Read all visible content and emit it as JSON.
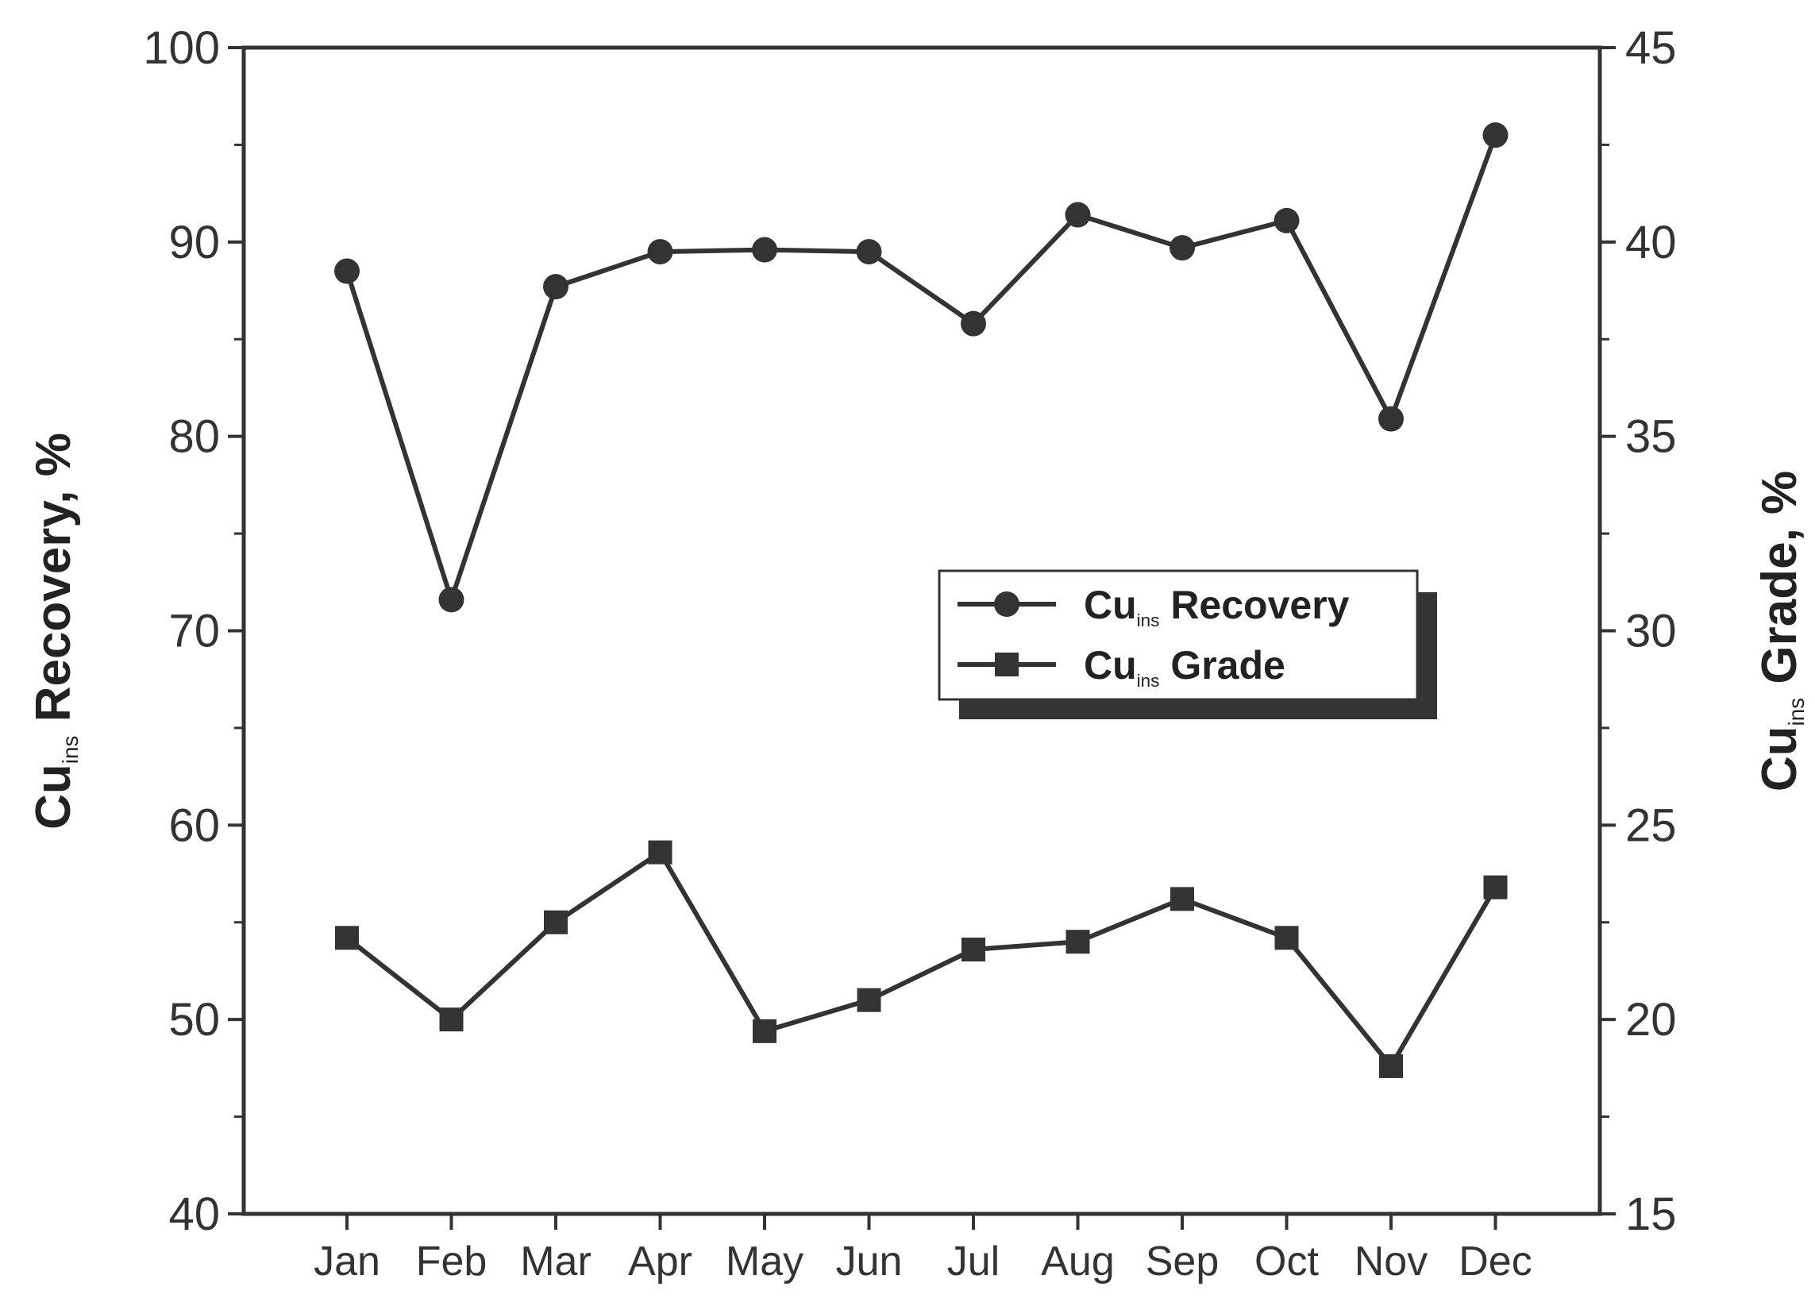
{
  "chart_data": {
    "type": "line",
    "categories": [
      "Jan",
      "Feb",
      "Mar",
      "Apr",
      "May",
      "Jun",
      "Jul",
      "Aug",
      "Sep",
      "Oct",
      "Nov",
      "Dec"
    ],
    "y_left": {
      "label_main": "Cu",
      "label_sub": "ins",
      "label_rest": " Recovery, %",
      "min": 40,
      "max": 100,
      "ticks": [
        40,
        50,
        60,
        70,
        80,
        90,
        100
      ]
    },
    "y_right": {
      "label_main": "Cu",
      "label_sub": "ins",
      "label_rest": " Grade, %",
      "min": 15,
      "max": 45,
      "ticks": [
        15,
        20,
        25,
        30,
        35,
        40,
        45
      ]
    },
    "series": [
      {
        "name_main": "Cu",
        "name_sub": "ins",
        "name_rest": " Recovery",
        "axis": "left",
        "marker": "circle",
        "values": [
          88.5,
          71.6,
          87.7,
          89.5,
          89.6,
          89.5,
          85.8,
          91.4,
          89.7,
          91.1,
          80.9,
          95.5
        ]
      },
      {
        "name_main": "Cu",
        "name_sub": "ins",
        "name_rest": " Grade",
        "axis": "right",
        "marker": "square",
        "values": [
          22.1,
          20.0,
          22.5,
          24.3,
          19.7,
          20.5,
          21.8,
          22.0,
          23.1,
          22.1,
          18.8,
          23.4
        ]
      }
    ],
    "legend_position": "center-right",
    "grid": false,
    "colors": {
      "line": "#333333",
      "shadow": "#333333",
      "axis": "#333333"
    }
  }
}
